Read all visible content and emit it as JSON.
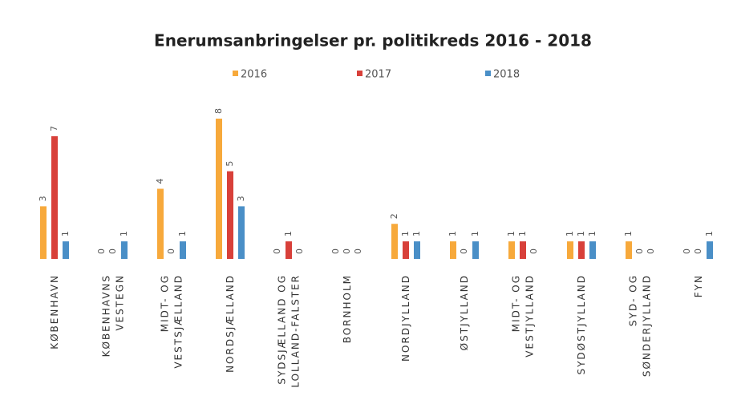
{
  "chart_data": {
    "type": "bar",
    "title": "Enerumsanbringelser pr. politikreds 2016 - 2018",
    "categories": [
      "KØBENHAVN",
      "KØBENHAVNS\nVESTEGN",
      "MIDT- OG\nVESTSJÆLLAND",
      "NORDSJÆLLAND",
      "SYDSJÆLLAND OG\nLOLLAND-FALSTER",
      "BORNHOLM",
      "NORDJYLLAND",
      "ØSTJYLLAND",
      "MIDT- OG\nVESTJYLLAND",
      "SYDØSTJYLLAND",
      "SYD- OG\nSØNDERJYLLAND",
      "FYN"
    ],
    "series": [
      {
        "name": "2016",
        "color": "#f7a93b",
        "values": [
          3,
          0,
          4,
          8,
          0,
          0,
          2,
          1,
          1,
          1,
          1,
          0
        ]
      },
      {
        "name": "2017",
        "color": "#d8403a",
        "values": [
          7,
          0,
          0,
          5,
          1,
          0,
          1,
          0,
          1,
          1,
          0,
          0
        ]
      },
      {
        "name": "2018",
        "color": "#4a8fc7",
        "values": [
          1,
          1,
          1,
          3,
          0,
          0,
          1,
          1,
          0,
          1,
          0,
          1
        ]
      }
    ],
    "legend": "top"
  }
}
